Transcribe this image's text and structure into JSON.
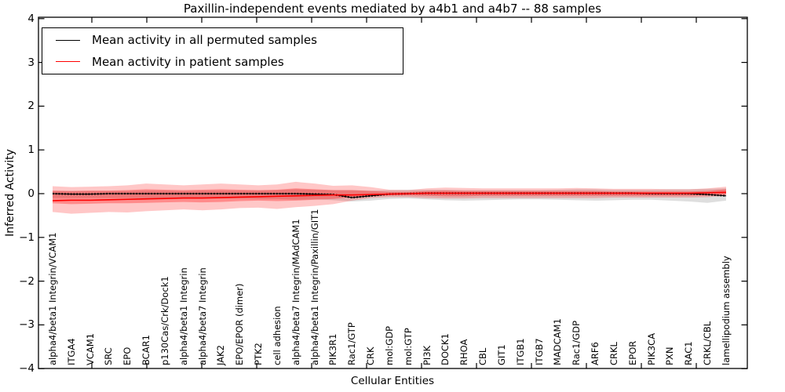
{
  "title": "Paxillin-independent events mediated by a4b1 and a4b7 -- 88 samples",
  "axes": {
    "ylabel": "Inferred Activity",
    "xlabel": "Cellular Entities",
    "yticks": [
      {
        "label": "4",
        "value": 4
      },
      {
        "label": "3",
        "value": 3
      },
      {
        "label": "2",
        "value": 2
      },
      {
        "label": "1",
        "value": 1
      },
      {
        "label": "0",
        "value": 0
      },
      {
        "label": "−1",
        "value": -1
      },
      {
        "label": "−2",
        "value": -2
      },
      {
        "label": "−3",
        "value": -3
      },
      {
        "label": "−4",
        "value": -4
      }
    ]
  },
  "legend": [
    {
      "label": "Mean activity in all permuted samples",
      "color": "#000000"
    },
    {
      "label": "Mean activity in patient samples",
      "color": "#ff0000"
    }
  ],
  "colors": {
    "permuted_line": "#000000",
    "patient_line": "#ff0000",
    "patient_band": "#ff0000",
    "permuted_band": "#888888",
    "frame": "#000000"
  },
  "chart_data": {
    "type": "line",
    "title": "Paxillin-independent events mediated by a4b1 and a4b7 -- 88 samples",
    "xlabel": "Cellular Entities",
    "ylabel": "Inferred Activity",
    "ylim": [
      -4,
      4
    ],
    "grid": false,
    "legend_position": "upper left",
    "categories": [
      "alpha4/beta1 Integrin/VCAM1",
      "ITGA4",
      "VCAM1",
      "SRC",
      "EPO",
      "BCAR1",
      "p130Cas/Crk/Dock1",
      "alpha4/beta1 Integrin",
      "alpha4/beta7 Integrin",
      "JAK2",
      "EPO/EPOR (dimer)",
      "PTK2",
      "cell adhesion",
      "alpha4/beta7 Integrin/MAdCAM1",
      "alpha4/beta1 Integrin/Paxillin/GIT1",
      "PIK3R1",
      "Rac1/GTP",
      "CRK",
      "mol:GDP",
      "mol:GTP",
      "PI3K",
      "DOCK1",
      "RHOA",
      "CBL",
      "GIT1",
      "ITGB1",
      "ITGB7",
      "MADCAM1",
      "Rac1/GDP",
      "ARF6",
      "CRKL",
      "EPOR",
      "PIK3CA",
      "PXN",
      "RAC1",
      "CRKL/CBL",
      "lamellipodium assembly"
    ],
    "series": [
      {
        "name": "Mean activity in all permuted samples",
        "color": "#000000",
        "values": [
          0,
          -0.01,
          -0.01,
          0,
          0,
          0,
          0,
          0,
          0,
          0,
          0,
          0,
          0,
          0,
          -0.01,
          -0.02,
          -0.09,
          -0.05,
          -0.01,
          0,
          0.01,
          0.01,
          0.01,
          0.01,
          0.01,
          0.01,
          0.01,
          0.01,
          0.01,
          0.01,
          0.01,
          0.01,
          0,
          0,
          0,
          -0.02,
          -0.05
        ]
      },
      {
        "name": "Mean activity in patient samples",
        "color": "#ff0000",
        "values": [
          -0.16,
          -0.15,
          -0.15,
          -0.14,
          -0.13,
          -0.12,
          -0.11,
          -0.1,
          -0.1,
          -0.09,
          -0.08,
          -0.07,
          -0.06,
          -0.05,
          -0.04,
          -0.03,
          -0.03,
          -0.02,
          -0.01,
          0,
          0.01,
          0.01,
          0.01,
          0.01,
          0.01,
          0.01,
          0.01,
          0.01,
          0.01,
          0.01,
          0.01,
          0.01,
          0.01,
          0.01,
          0.01,
          0.02,
          0.03
        ]
      }
    ],
    "bands": [
      {
        "name": "permuted-samples-range",
        "color": "#888888",
        "opacity": 0.28,
        "upper": [
          0.06,
          0.06,
          0.06,
          0.06,
          0.06,
          0.07,
          0.07,
          0.06,
          0.07,
          0.07,
          0.07,
          0.07,
          0.08,
          0.1,
          0.09,
          0.08,
          0.08,
          0.07,
          0.08,
          0.09,
          0.09,
          0.09,
          0.08,
          0.08,
          0.08,
          0.08,
          0.08,
          0.09,
          0.1,
          0.1,
          0.09,
          0.09,
          0.09,
          0.1,
          0.1,
          0.11,
          0.12
        ],
        "lower": [
          -0.1,
          -0.1,
          -0.1,
          -0.1,
          -0.1,
          -0.11,
          -0.11,
          -0.1,
          -0.11,
          -0.11,
          -0.11,
          -0.12,
          -0.12,
          -0.14,
          -0.13,
          -0.15,
          -0.18,
          -0.16,
          -0.12,
          -0.11,
          -0.13,
          -0.15,
          -0.16,
          -0.15,
          -0.14,
          -0.13,
          -0.13,
          -0.14,
          -0.15,
          -0.16,
          -0.15,
          -0.14,
          -0.14,
          -0.16,
          -0.18,
          -0.21,
          -0.16
        ]
      },
      {
        "name": "patient-samples-range-outer",
        "color": "#ff0000",
        "opacity": 0.22,
        "upper": [
          0.17,
          0.15,
          0.16,
          0.17,
          0.19,
          0.23,
          0.21,
          0.19,
          0.21,
          0.23,
          0.21,
          0.19,
          0.21,
          0.27,
          0.23,
          0.18,
          0.19,
          0.15,
          0.09,
          0.08,
          0.12,
          0.14,
          0.13,
          0.12,
          0.12,
          0.12,
          0.12,
          0.12,
          0.13,
          0.12,
          0.11,
          0.11,
          0.11,
          0.1,
          0.1,
          0.12,
          0.16
        ],
        "lower": [
          -0.42,
          -0.46,
          -0.44,
          -0.42,
          -0.43,
          -0.4,
          -0.38,
          -0.36,
          -0.38,
          -0.36,
          -0.33,
          -0.32,
          -0.35,
          -0.31,
          -0.28,
          -0.24,
          -0.16,
          -0.1,
          -0.08,
          -0.08,
          -0.1,
          -0.11,
          -0.11,
          -0.1,
          -0.1,
          -0.1,
          -0.1,
          -0.1,
          -0.1,
          -0.1,
          -0.09,
          -0.09,
          -0.09,
          -0.09,
          -0.09,
          -0.08,
          -0.05
        ]
      },
      {
        "name": "patient-samples-range-inner",
        "color": "#ff0000",
        "opacity": 0.3,
        "upper": [
          0.07,
          0.06,
          0.07,
          0.07,
          0.08,
          0.1,
          0.09,
          0.08,
          0.09,
          0.1,
          0.09,
          0.08,
          0.09,
          0.12,
          0.1,
          0.08,
          0.08,
          0.06,
          0.04,
          0.04,
          0.06,
          0.07,
          0.06,
          0.06,
          0.06,
          0.06,
          0.06,
          0.06,
          0.06,
          0.06,
          0.05,
          0.05,
          0.05,
          0.05,
          0.05,
          0.06,
          0.1
        ],
        "lower": [
          -0.22,
          -0.24,
          -0.23,
          -0.22,
          -0.22,
          -0.21,
          -0.2,
          -0.19,
          -0.2,
          -0.19,
          -0.17,
          -0.16,
          -0.17,
          -0.16,
          -0.14,
          -0.12,
          -0.08,
          -0.06,
          -0.04,
          -0.04,
          -0.05,
          -0.06,
          -0.06,
          -0.05,
          -0.05,
          -0.05,
          -0.05,
          -0.05,
          -0.05,
          -0.05,
          -0.05,
          -0.05,
          -0.05,
          -0.05,
          -0.05,
          -0.04,
          -0.02
        ]
      }
    ]
  }
}
